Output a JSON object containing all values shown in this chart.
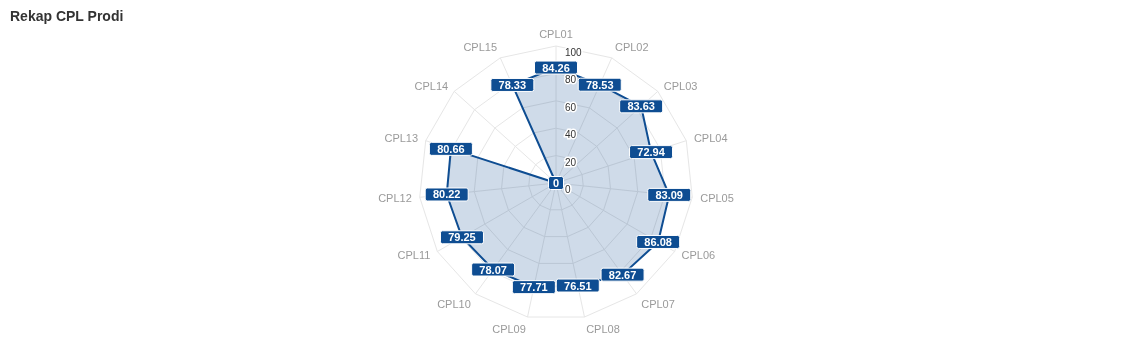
{
  "chart_data": {
    "type": "radar",
    "title": "Rekap CPL Prodi",
    "categories": [
      "CPL01",
      "CPL02",
      "CPL03",
      "CPL04",
      "CPL05",
      "CPL06",
      "CPL07",
      "CPL08",
      "CPL09",
      "CPL10",
      "CPL11",
      "CPL12",
      "CPL13",
      "CPL14",
      "CPL15"
    ],
    "series": [
      {
        "color": "#0e4d92",
        "values": [
          84.26,
          78.53,
          83.63,
          72.94,
          83.09,
          86.08,
          82.67,
          76.51,
          77.71,
          78.07,
          79.25,
          80.22,
          80.66,
          0,
          78.33
        ]
      }
    ],
    "ylim": [
      0,
      100
    ],
    "yticks": [
      0,
      20,
      40,
      60,
      80,
      100
    ],
    "grid": true,
    "data_labels": true
  }
}
